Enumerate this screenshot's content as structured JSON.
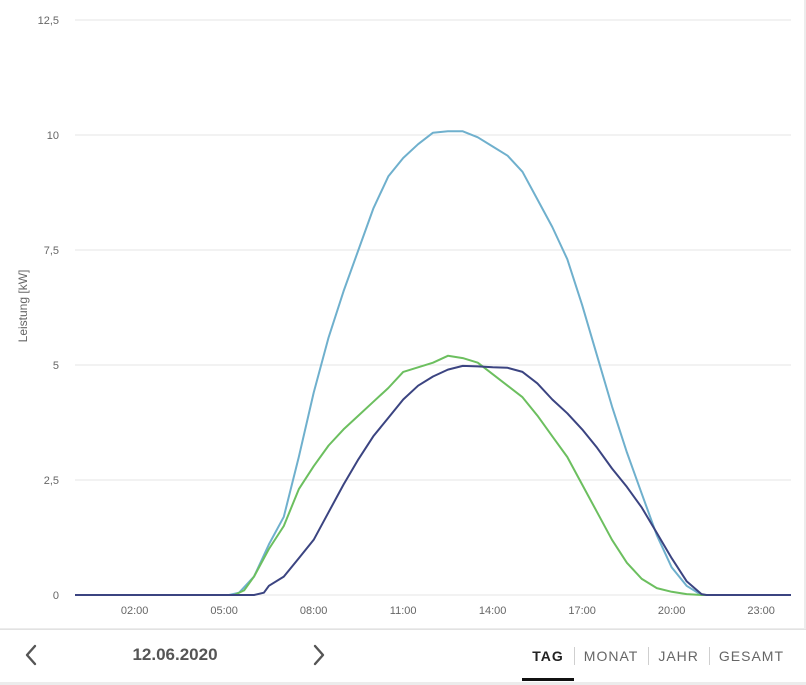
{
  "chart_data": {
    "type": "line",
    "ylabel": "Leistung [kW]",
    "ylim": [
      0,
      12.5
    ],
    "xlim": [
      "00:00",
      "24:00"
    ],
    "y_ticks": [
      "0",
      "2,5",
      "5",
      "7,5",
      "10",
      "12,5"
    ],
    "x_ticks": [
      "02:00",
      "05:00",
      "08:00",
      "11:00",
      "14:00",
      "17:00",
      "20:00",
      "23:00"
    ],
    "grid": "horizontal",
    "series": [
      {
        "color": "#6fb0cd",
        "points": [
          [
            "00:00",
            0
          ],
          [
            "05:10",
            0
          ],
          [
            "05:30",
            0.05
          ],
          [
            "06:00",
            0.4
          ],
          [
            "06:30",
            1.1
          ],
          [
            "07:00",
            1.7
          ],
          [
            "07:30",
            3.0
          ],
          [
            "08:00",
            4.4
          ],
          [
            "08:30",
            5.6
          ],
          [
            "09:00",
            6.6
          ],
          [
            "09:30",
            7.5
          ],
          [
            "10:00",
            8.4
          ],
          [
            "10:30",
            9.1
          ],
          [
            "11:00",
            9.5
          ],
          [
            "11:30",
            9.8
          ],
          [
            "12:00",
            10.05
          ],
          [
            "12:30",
            10.08
          ],
          [
            "13:00",
            10.08
          ],
          [
            "13:30",
            9.95
          ],
          [
            "14:00",
            9.75
          ],
          [
            "14:30",
            9.55
          ],
          [
            "15:00",
            9.2
          ],
          [
            "15:30",
            8.6
          ],
          [
            "16:00",
            8.0
          ],
          [
            "16:30",
            7.3
          ],
          [
            "17:00",
            6.3
          ],
          [
            "17:30",
            5.2
          ],
          [
            "18:00",
            4.1
          ],
          [
            "18:30",
            3.1
          ],
          [
            "19:00",
            2.2
          ],
          [
            "19:30",
            1.3
          ],
          [
            "20:00",
            0.6
          ],
          [
            "20:30",
            0.2
          ],
          [
            "21:00",
            0
          ],
          [
            "24:00",
            0
          ]
        ]
      },
      {
        "color": "#6cbf5f",
        "points": [
          [
            "00:00",
            0
          ],
          [
            "05:20",
            0
          ],
          [
            "05:40",
            0.1
          ],
          [
            "06:00",
            0.4
          ],
          [
            "06:30",
            1.0
          ],
          [
            "07:00",
            1.5
          ],
          [
            "07:30",
            2.3
          ],
          [
            "08:00",
            2.8
          ],
          [
            "08:30",
            3.25
          ],
          [
            "09:00",
            3.6
          ],
          [
            "09:30",
            3.9
          ],
          [
            "10:00",
            4.2
          ],
          [
            "10:30",
            4.5
          ],
          [
            "11:00",
            4.85
          ],
          [
            "11:30",
            4.95
          ],
          [
            "12:00",
            5.05
          ],
          [
            "12:30",
            5.2
          ],
          [
            "13:00",
            5.15
          ],
          [
            "13:30",
            5.05
          ],
          [
            "14:00",
            4.8
          ],
          [
            "14:30",
            4.55
          ],
          [
            "15:00",
            4.3
          ],
          [
            "15:30",
            3.9
          ],
          [
            "16:00",
            3.45
          ],
          [
            "16:30",
            3.0
          ],
          [
            "17:00",
            2.4
          ],
          [
            "17:30",
            1.8
          ],
          [
            "18:00",
            1.2
          ],
          [
            "18:30",
            0.7
          ],
          [
            "19:00",
            0.35
          ],
          [
            "19:30",
            0.15
          ],
          [
            "20:00",
            0.07
          ],
          [
            "20:30",
            0.02
          ],
          [
            "21:00",
            0
          ],
          [
            "24:00",
            0
          ]
        ]
      },
      {
        "color": "#3b4481",
        "points": [
          [
            "00:00",
            0
          ],
          [
            "06:00",
            0
          ],
          [
            "06:20",
            0.05
          ],
          [
            "06:30",
            0.2
          ],
          [
            "07:00",
            0.4
          ],
          [
            "07:30",
            0.8
          ],
          [
            "08:00",
            1.2
          ],
          [
            "08:30",
            1.8
          ],
          [
            "09:00",
            2.4
          ],
          [
            "09:30",
            2.95
          ],
          [
            "10:00",
            3.45
          ],
          [
            "10:30",
            3.85
          ],
          [
            "11:00",
            4.25
          ],
          [
            "11:30",
            4.55
          ],
          [
            "12:00",
            4.75
          ],
          [
            "12:30",
            4.9
          ],
          [
            "13:00",
            4.98
          ],
          [
            "13:30",
            4.97
          ],
          [
            "14:00",
            4.95
          ],
          [
            "14:30",
            4.94
          ],
          [
            "15:00",
            4.85
          ],
          [
            "15:30",
            4.6
          ],
          [
            "16:00",
            4.25
          ],
          [
            "16:30",
            3.95
          ],
          [
            "17:00",
            3.6
          ],
          [
            "17:30",
            3.2
          ],
          [
            "18:00",
            2.75
          ],
          [
            "18:30",
            2.35
          ],
          [
            "19:00",
            1.9
          ],
          [
            "19:30",
            1.35
          ],
          [
            "20:00",
            0.8
          ],
          [
            "20:30",
            0.3
          ],
          [
            "21:00",
            0.02
          ],
          [
            "21:10",
            0
          ],
          [
            "24:00",
            0
          ]
        ]
      }
    ]
  },
  "footer": {
    "date": "12.06.2020",
    "prev_icon": "chevron-left-icon",
    "next_icon": "chevron-right-icon",
    "tabs": [
      {
        "label": "TAG",
        "active": true
      },
      {
        "label": "MONAT",
        "active": false
      },
      {
        "label": "JAHR",
        "active": false
      },
      {
        "label": "GESAMT",
        "active": false
      }
    ]
  }
}
